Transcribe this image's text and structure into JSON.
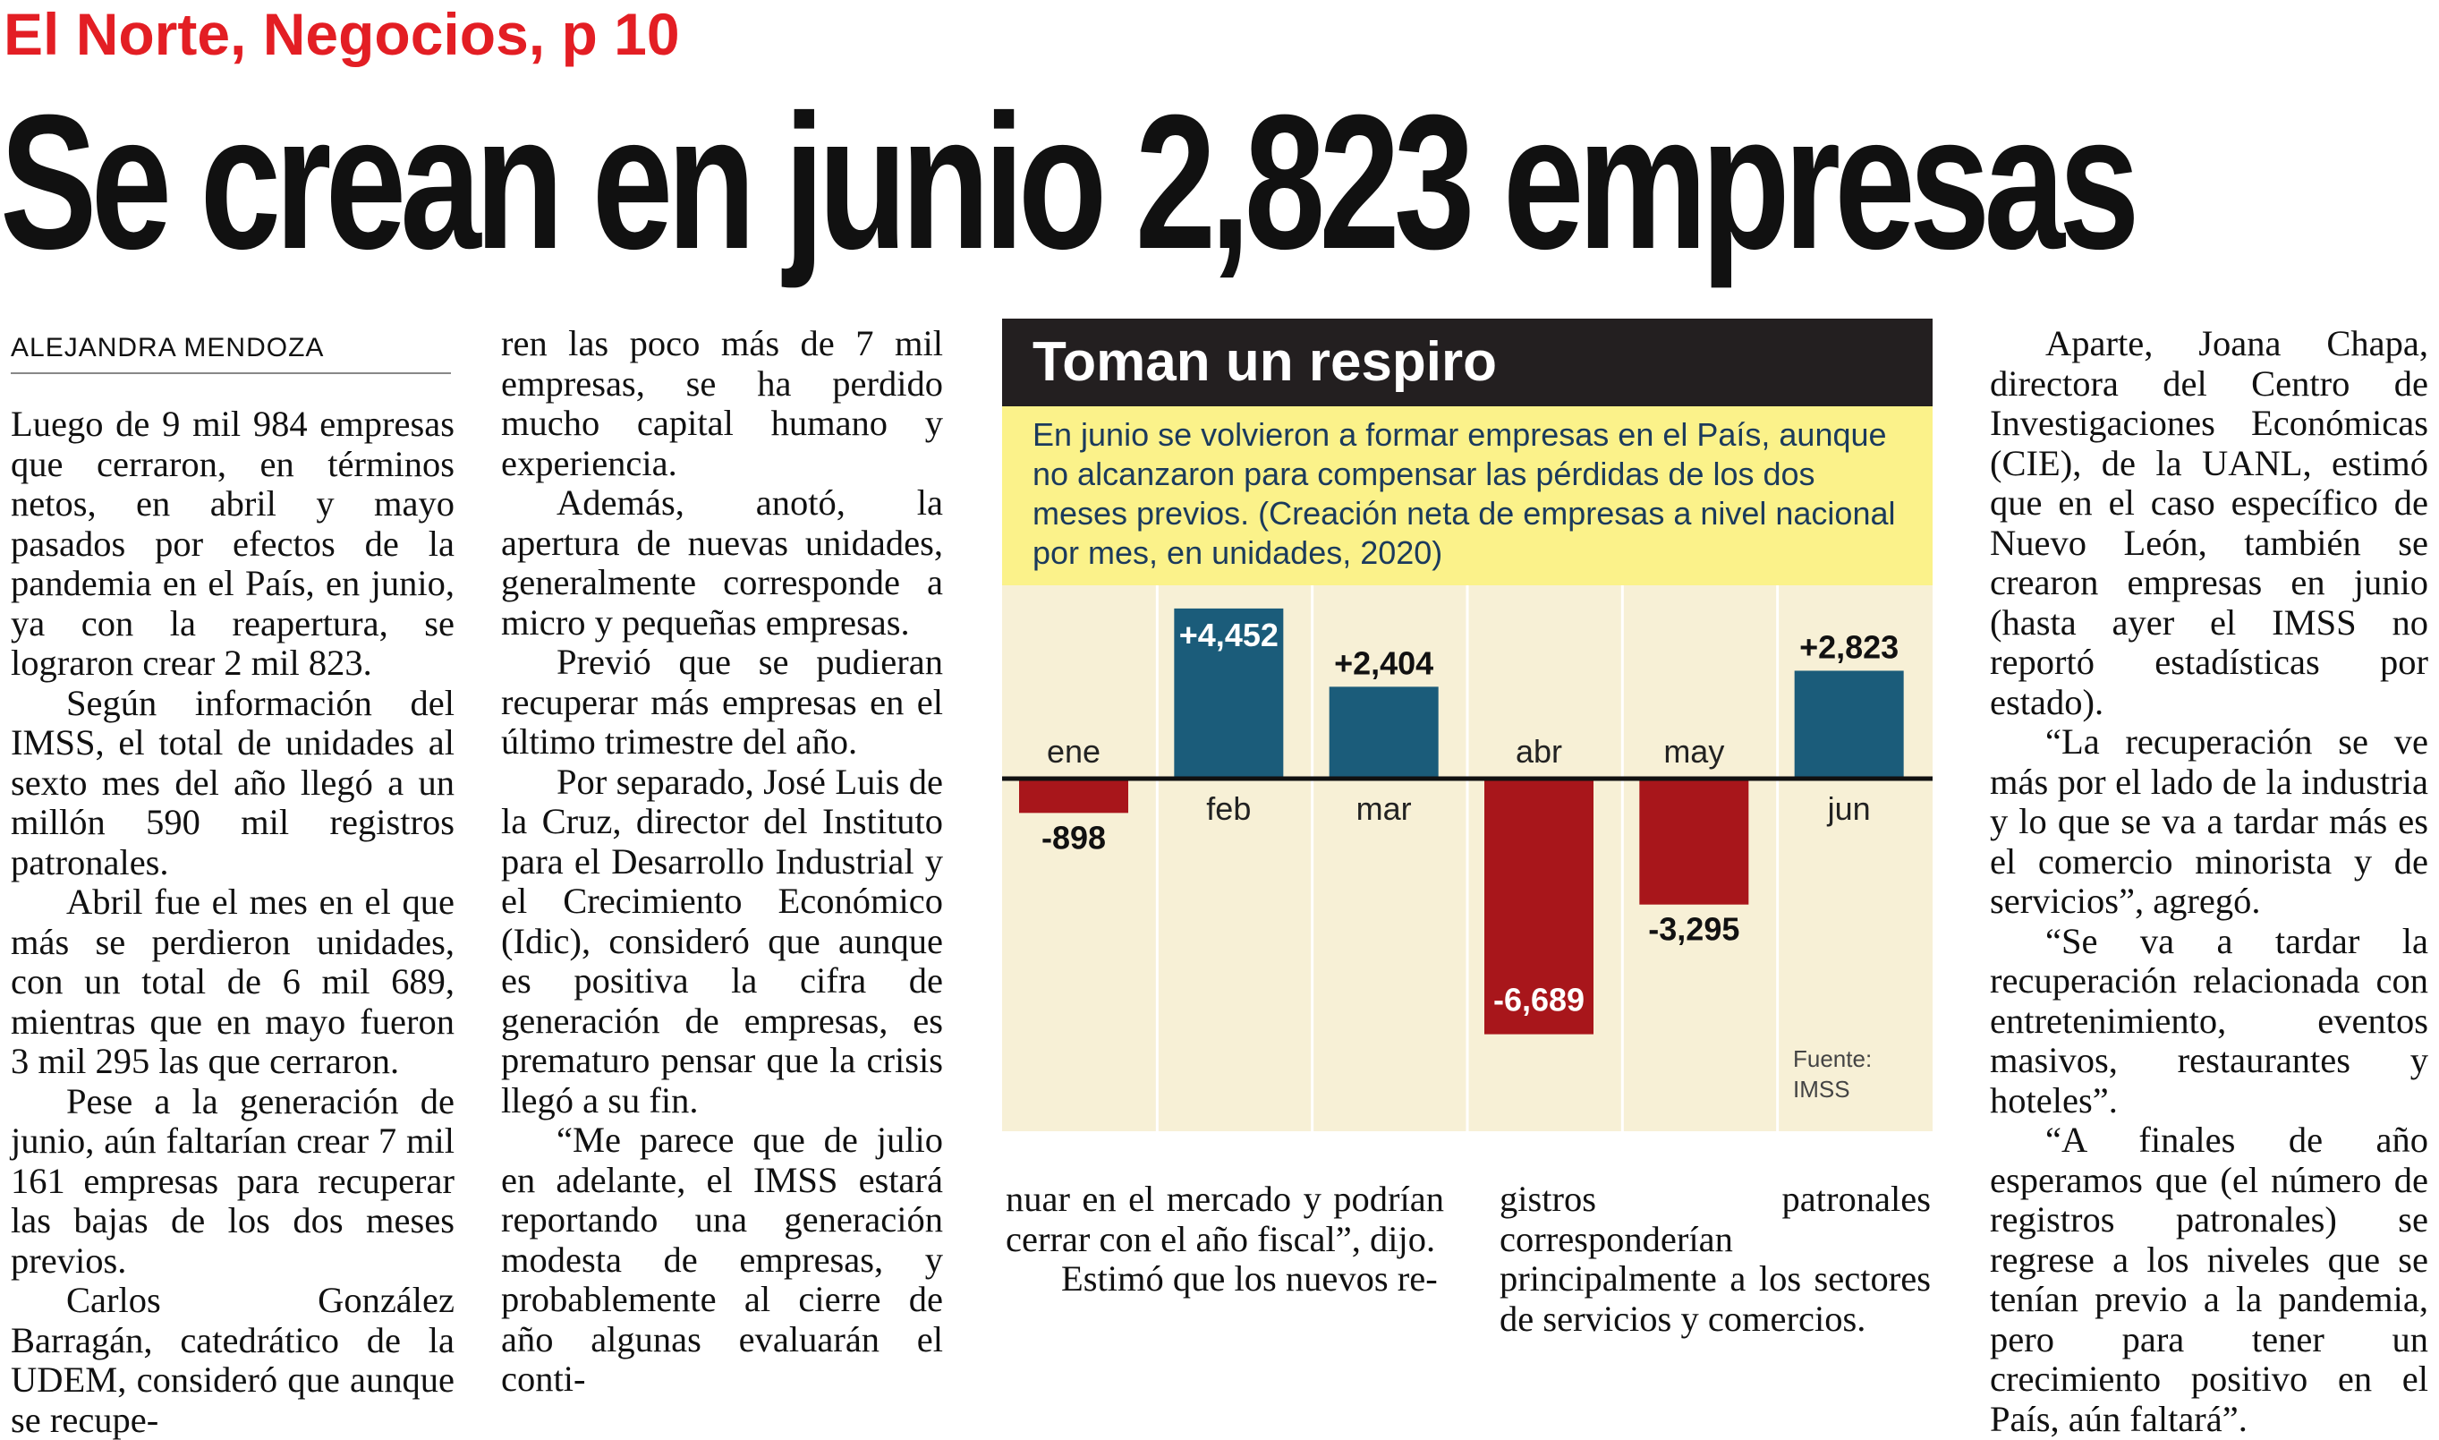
{
  "source_tag": "El Norte, Negocios, p 10",
  "headline": "Se crean en junio 2,823 empresas",
  "byline": "ALEJANDRA MENDOZA",
  "columns": {
    "col1": [
      "Luego de 9 mil 984 empresas que cerraron, en términos netos, en abril y mayo pasados por efectos de la pandemia en el País, en junio, ya con la reapertura, se lograron crear 2 mil 823.",
      "Según información del IMSS, el total de unidades al sexto mes del año llegó a un millón 590 mil registros patronales.",
      "Abril fue el mes en el que más se perdieron unidades, con un total de 6 mil 689, mientras que en mayo fueron 3 mil 295 las que cerraron.",
      "Pese a la generación de junio, aún faltarían crear 7 mil 161 empresas para recuperar las bajas de los dos meses previos.",
      "Carlos González Barragán, catedrático de la UDEM, consideró que aunque se recupe-"
    ],
    "col2": [
      "ren las poco más de 7 mil empresas, se ha perdido mucho capital humano y experiencia.",
      "Además, anotó, la apertura de nuevas unidades, generalmente corresponde a micro y pequeñas empresas.",
      "Previó que se pudieran recuperar más empresas en el último trimestre del año.",
      "Por separado, José Luis de la Cruz, director del Instituto para el Desarrollo Industrial y el Crecimiento Económico (Idic), consideró que aunque es positiva la cifra de generación de empresas, es prematuro pensar que la crisis llegó a su fin.",
      "“Me parece que de julio en adelante, el IMSS estará reportando una generación modesta de empresas, y probablemente al cierre de año algunas evaluarán el conti-"
    ],
    "col3": [
      "nuar en el mercado y podrían cerrar con el año fiscal”, dijo.",
      "Estimó que los nuevos re-"
    ],
    "col4": [
      "gistros patronales corresponderían principalmente a los sectores de servicios y comercios."
    ],
    "col5": [
      "Aparte, Joana Chapa, directora del Centro de Investigaciones Económicas (CIE), de la UANL, estimó que en el caso específico de Nuevo León, también se crearon empresas en junio (hasta ayer el IMSS no reportó estadísticas por estado).",
      "“La recuperación se ve más por el lado de la industria y lo que se va a tardar más es el comercio minorista y de servicios”, agregó.",
      "“Se va a tardar la recuperación relacionada con entretenimiento, eventos masivos, restaurantes y hoteles”.",
      "“A finales de año esperamos que (el número de registros patronales) se regrese a los niveles que se tenían previo a la pandemia, pero para tener un crecimiento positivo en el País, aún faltará”."
    ]
  },
  "infobox": {
    "title": "Toman un respiro",
    "intro": "En junio se volvieron a formar empresas en el País, aunque no alcanzaron para compensar las pérdidas de los dos meses previos.  (Creación neta de empresas a nivel nacional por mes, en unidades, 2020)",
    "source_label": "Fuente:",
    "source_name": "IMSS"
  },
  "chart_data": {
    "type": "bar",
    "categories": [
      "ene",
      "feb",
      "mar",
      "abr",
      "may",
      "jun"
    ],
    "values": [
      -898,
      4452,
      2404,
      -6689,
      -3295,
      2823
    ],
    "value_labels": [
      "-898",
      "+4,452",
      "+2,404",
      "-6,689",
      "-3,295",
      "+2,823"
    ],
    "colors": {
      "positive": "#1b5c7a",
      "negative": "#a8161b",
      "background": "#f7f0d6",
      "title_bar": "#231f20",
      "intro_bg": "#fbf28a"
    },
    "grid": false
  }
}
